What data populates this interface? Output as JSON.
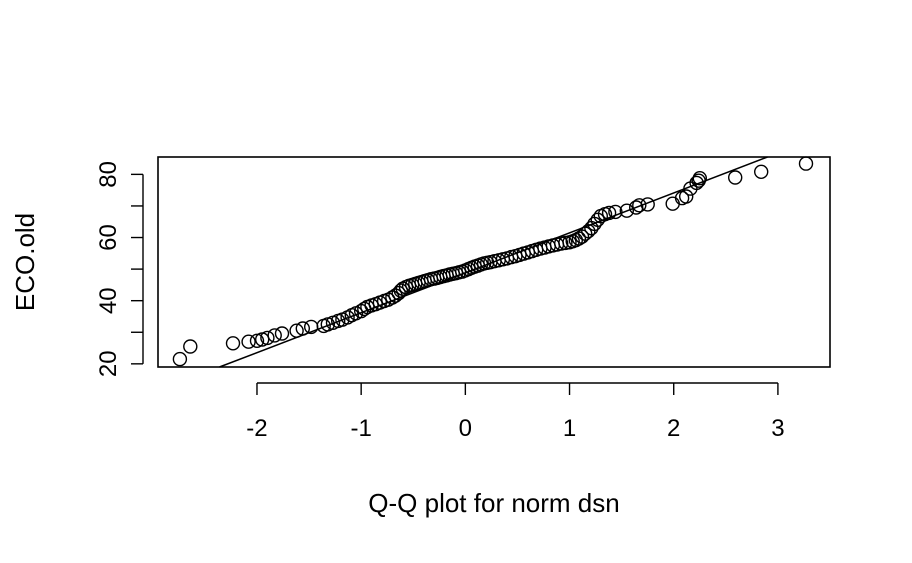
{
  "chart_data": {
    "type": "scatter",
    "subtype": "qq-plot",
    "title": "",
    "xlabel": "Q-Q plot for norm dsn",
    "ylabel": "ECO.old",
    "xlim": [
      -2.95,
      3.5
    ],
    "ylim": [
      19,
      85.5
    ],
    "x_ticks": [
      -2,
      -1,
      0,
      1,
      2,
      3
    ],
    "x_tick_labels": [
      "-2",
      "-1",
      "0",
      "1",
      "2",
      "3"
    ],
    "y_ticks": [
      20,
      30,
      40,
      50,
      60,
      70,
      80
    ],
    "y_tick_labels": [
      "20",
      "",
      "40",
      "",
      "60",
      "",
      "80"
    ],
    "grid": false,
    "marker": "open-circle",
    "reference_line": {
      "points": [
        [
          -2.36,
          19
        ],
        [
          2.9,
          85.5
        ]
      ]
    },
    "series": [
      {
        "points": [
          [
            -2.74,
            21.5
          ],
          [
            -2.64,
            25.5
          ],
          [
            -2.23,
            26.5
          ],
          [
            -2.08,
            27.0
          ],
          [
            -2.0,
            27.3
          ],
          [
            -1.95,
            27.7
          ],
          [
            -1.9,
            28.2
          ],
          [
            -1.83,
            29.0
          ],
          [
            -1.76,
            29.6
          ],
          [
            -1.62,
            30.5
          ],
          [
            -1.56,
            31.2
          ],
          [
            -1.48,
            31.7
          ],
          [
            -1.36,
            32.0
          ],
          [
            -1.32,
            32.5
          ],
          [
            -1.27,
            33.0
          ],
          [
            -1.22,
            33.6
          ],
          [
            -1.18,
            34.0
          ],
          [
            -1.13,
            34.7
          ],
          [
            -1.09,
            35.4
          ],
          [
            -1.05,
            36.0
          ],
          [
            -1.0,
            36.7
          ],
          [
            -0.97,
            37.4
          ],
          [
            -0.94,
            38.0
          ],
          [
            -0.9,
            38.5
          ],
          [
            -0.86,
            38.9
          ],
          [
            -0.82,
            39.4
          ],
          [
            -0.78,
            39.9
          ],
          [
            -0.74,
            40.3
          ],
          [
            -0.7,
            41.0
          ],
          [
            -0.67,
            41.6
          ],
          [
            -0.64,
            42.4
          ],
          [
            -0.62,
            43.2
          ],
          [
            -0.6,
            43.8
          ],
          [
            -0.57,
            44.3
          ],
          [
            -0.54,
            44.7
          ],
          [
            -0.51,
            45.0
          ],
          [
            -0.48,
            45.3
          ],
          [
            -0.45,
            45.6
          ],
          [
            -0.42,
            45.9
          ],
          [
            -0.39,
            46.2
          ],
          [
            -0.36,
            46.5
          ],
          [
            -0.33,
            46.8
          ],
          [
            -0.3,
            47.0
          ],
          [
            -0.27,
            47.2
          ],
          [
            -0.24,
            47.5
          ],
          [
            -0.21,
            47.8
          ],
          [
            -0.18,
            48.0
          ],
          [
            -0.15,
            48.3
          ],
          [
            -0.12,
            48.5
          ],
          [
            -0.09,
            48.7
          ],
          [
            -0.06,
            49.0
          ],
          [
            -0.03,
            49.2
          ],
          [
            0.0,
            49.6
          ],
          [
            0.03,
            50.0
          ],
          [
            0.06,
            50.4
          ],
          [
            0.09,
            50.8
          ],
          [
            0.12,
            51.1
          ],
          [
            0.15,
            51.5
          ],
          [
            0.18,
            51.8
          ],
          [
            0.21,
            52.0
          ],
          [
            0.24,
            52.2
          ],
          [
            0.28,
            52.5
          ],
          [
            0.32,
            52.8
          ],
          [
            0.36,
            53.1
          ],
          [
            0.4,
            53.4
          ],
          [
            0.44,
            53.8
          ],
          [
            0.48,
            54.1
          ],
          [
            0.52,
            54.5
          ],
          [
            0.56,
            54.9
          ],
          [
            0.6,
            55.3
          ],
          [
            0.64,
            55.7
          ],
          [
            0.68,
            56.1
          ],
          [
            0.72,
            56.5
          ],
          [
            0.76,
            56.8
          ],
          [
            0.8,
            57.2
          ],
          [
            0.84,
            57.5
          ],
          [
            0.88,
            57.8
          ],
          [
            0.92,
            58.1
          ],
          [
            0.96,
            58.3
          ],
          [
            1.0,
            58.5
          ],
          [
            1.03,
            58.8
          ],
          [
            1.06,
            59.2
          ],
          [
            1.09,
            59.7
          ],
          [
            1.12,
            60.3
          ],
          [
            1.15,
            61.2
          ],
          [
            1.18,
            62.0
          ],
          [
            1.21,
            63.0
          ],
          [
            1.24,
            64.3
          ],
          [
            1.27,
            65.6
          ],
          [
            1.3,
            66.8
          ],
          [
            1.34,
            67.4
          ],
          [
            1.38,
            67.8
          ],
          [
            1.44,
            68.1
          ],
          [
            1.55,
            68.5
          ],
          [
            1.64,
            69.5
          ],
          [
            1.67,
            70.2
          ],
          [
            1.75,
            70.5
          ],
          [
            1.99,
            70.7
          ],
          [
            2.08,
            72.5
          ],
          [
            2.12,
            73.0
          ],
          [
            2.16,
            75.5
          ],
          [
            2.22,
            77.3
          ],
          [
            2.24,
            78.0
          ],
          [
            2.25,
            78.8
          ],
          [
            2.59,
            79.0
          ],
          [
            2.84,
            80.8
          ],
          [
            3.27,
            83.4
          ]
        ]
      }
    ]
  }
}
